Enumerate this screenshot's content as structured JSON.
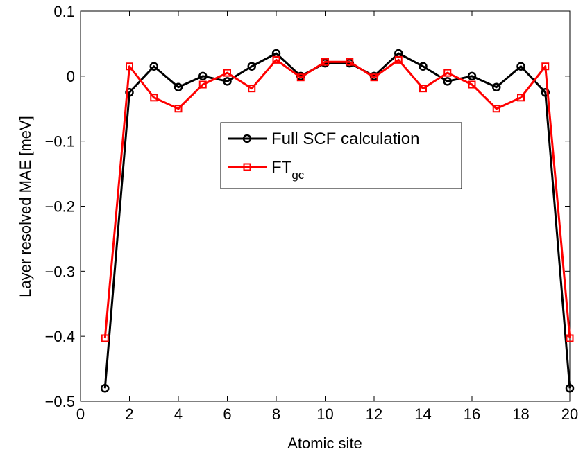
{
  "chart_data": {
    "type": "line",
    "title": "",
    "xlabel": "Atomic site",
    "ylabel": "Layer resolved MAE [meV]",
    "xlim": [
      0,
      20
    ],
    "ylim": [
      -0.5,
      0.1
    ],
    "xticks": [
      0,
      2,
      4,
      6,
      8,
      10,
      12,
      14,
      16,
      18,
      20
    ],
    "yticks": [
      -0.5,
      -0.4,
      -0.3,
      -0.2,
      -0.1,
      0,
      0.1
    ],
    "xtick_labels": [
      "0",
      "2",
      "4",
      "6",
      "8",
      "10",
      "12",
      "14",
      "16",
      "18",
      "20"
    ],
    "ytick_labels": [
      "−0.5",
      "−0.4",
      "−0.3",
      "−0.2",
      "−0.1",
      "0",
      "0.1"
    ],
    "grid": false,
    "legend_position": "center",
    "x": [
      1,
      2,
      3,
      4,
      5,
      6,
      7,
      8,
      9,
      10,
      11,
      12,
      13,
      14,
      15,
      16,
      17,
      18,
      19,
      20
    ],
    "series": [
      {
        "name": "Full SCF calculation",
        "color": "#000000",
        "marker": "circle",
        "values": [
          -0.48,
          -0.025,
          0.015,
          -0.017,
          0.0,
          -0.008,
          0.015,
          0.035,
          0.0,
          0.02,
          0.02,
          0.0,
          0.035,
          0.015,
          -0.008,
          0.0,
          -0.017,
          0.015,
          -0.025,
          -0.48
        ]
      },
      {
        "name_main": "FT",
        "name_sub": "gc",
        "color": "#ff0000",
        "marker": "square",
        "values": [
          -0.403,
          0.015,
          -0.033,
          -0.05,
          -0.013,
          0.005,
          -0.019,
          0.025,
          -0.002,
          0.022,
          0.022,
          -0.002,
          0.025,
          -0.019,
          0.005,
          -0.013,
          -0.05,
          -0.033,
          0.015,
          -0.403
        ]
      }
    ]
  }
}
